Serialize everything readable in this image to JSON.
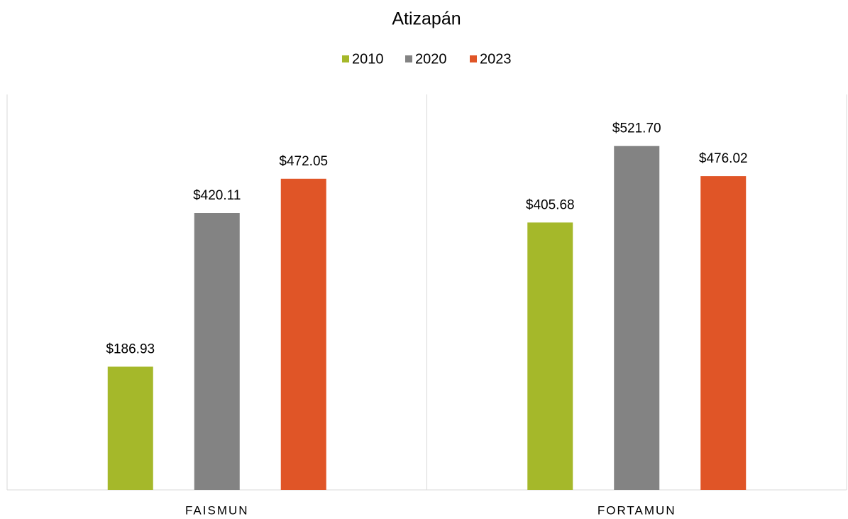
{
  "chart_data": {
    "type": "bar",
    "title": "Atizapán",
    "categories": [
      "FAISMUN",
      "FORTAMUN"
    ],
    "series": [
      {
        "name": "2010",
        "color": "#a5b82a",
        "values": [
          186.93,
          405.68
        ],
        "value_labels": [
          "$186.93",
          "$405.68"
        ]
      },
      {
        "name": "2020",
        "color": "#838383",
        "values": [
          420.11,
          521.7
        ],
        "value_labels": [
          "$420.11",
          "$521.70"
        ]
      },
      {
        "name": "2023",
        "color": "#e05527",
        "values": [
          472.05,
          476.02
        ],
        "value_labels": [
          "$472.05",
          "$476.02"
        ]
      }
    ],
    "ylim": [
      0,
      600
    ],
    "legend": "top"
  }
}
